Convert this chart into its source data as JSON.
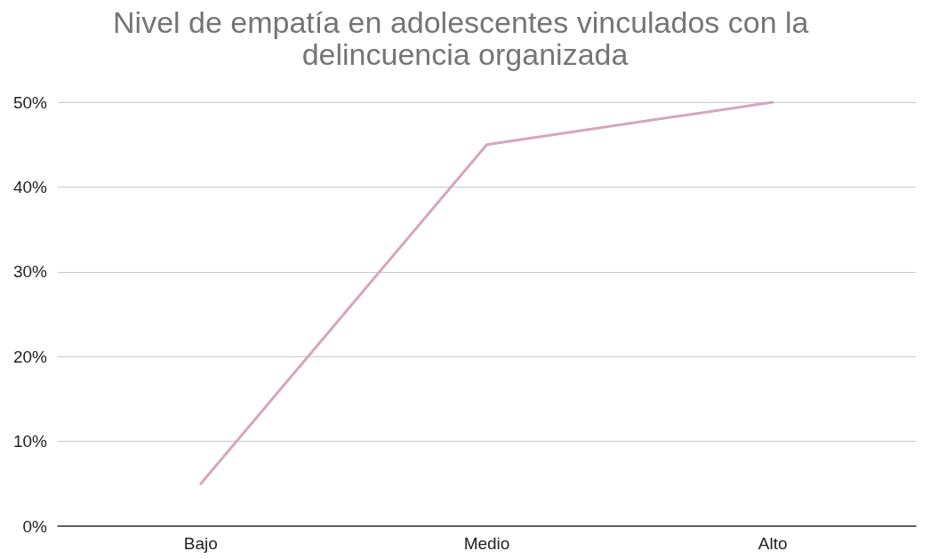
{
  "chart_data": {
    "type": "line",
    "title": "Nivel de empatía en adolescentes vinculados con la delincuencia organizada",
    "categories": [
      "Bajo",
      "Medio",
      "Alto"
    ],
    "series": [
      {
        "color": "#d5a6bd",
        "values": [
          5,
          45,
          50
        ]
      }
    ],
    "ylim": [
      0,
      50
    ],
    "yticks": [
      {
        "value": 0,
        "label": "0%"
      },
      {
        "value": 10,
        "label": "10%"
      },
      {
        "value": 20,
        "label": "20%"
      },
      {
        "value": 30,
        "label": "30%"
      },
      {
        "value": 40,
        "label": "40%"
      },
      {
        "value": 50,
        "label": "50%"
      }
    ],
    "grid": "y",
    "marker": "none",
    "line_style": "solid"
  }
}
